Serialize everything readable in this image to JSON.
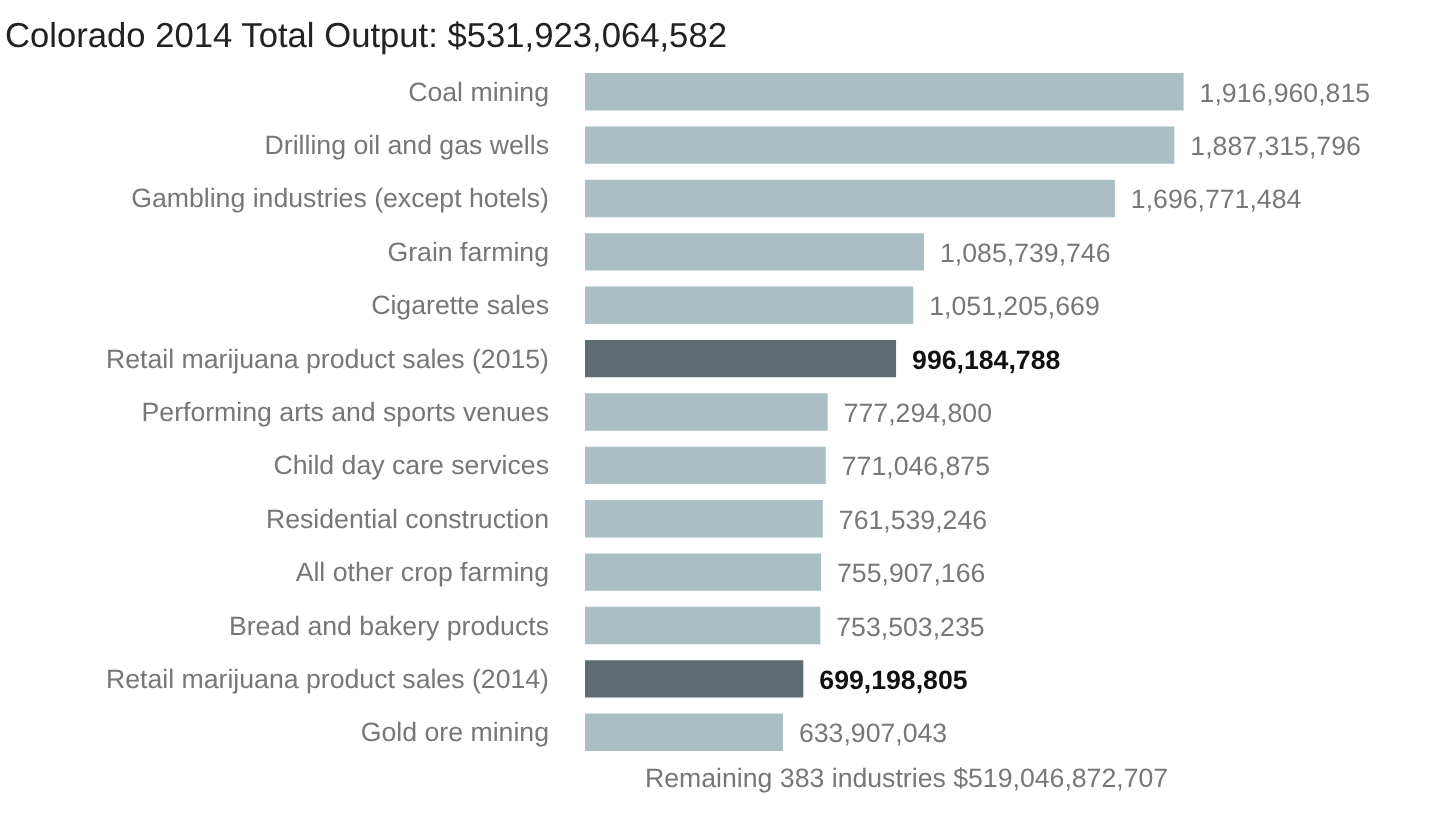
{
  "chart_data": {
    "type": "bar",
    "orientation": "horizontal",
    "title": "Colorado 2014 Total Output: $531,923,064,582",
    "categories": [
      "Coal mining",
      "Drilling oil and gas wells",
      "Gambling industries (except hotels)",
      "Grain farming",
      "Cigarette sales",
      "Retail marijuana product sales (2015)",
      "Performing arts and sports venues",
      "Child day care services",
      "Residential construction",
      "All other crop farming",
      "Bread and bakery products",
      "Retail marijuana product sales (2014)",
      "Gold ore mining"
    ],
    "values": [
      1916960815,
      1887315796,
      1696771484,
      1085739746,
      1051205669,
      996184788,
      777294800,
      771046875,
      761539246,
      755907166,
      753503235,
      699198805,
      633907043
    ],
    "colors": [
      "#a9bfc3",
      "#a9bfc3",
      "#a9bfc3",
      "#a9bfc3",
      "#a9bfc3",
      "#5f6b70",
      "#a9bfc3",
      "#a9bfc3",
      "#a9bfc3",
      "#a9bfc3",
      "#a9bfc3",
      "#5f6b70",
      "#a9bfc3"
    ],
    "value_labels": [
      "1,916,960,815",
      "1,887,315,796",
      "1,696,771,484",
      "1,085,739,746",
      "1,051,205,669",
      "996,184,788",
      "777,294,800",
      "771,046,875",
      "761,539,246",
      "755,907,166",
      "753,503,235",
      "699,198,805",
      "633,907,043"
    ],
    "annotations": [
      "Remaining 383 industries  $519,046,872,707"
    ]
  }
}
